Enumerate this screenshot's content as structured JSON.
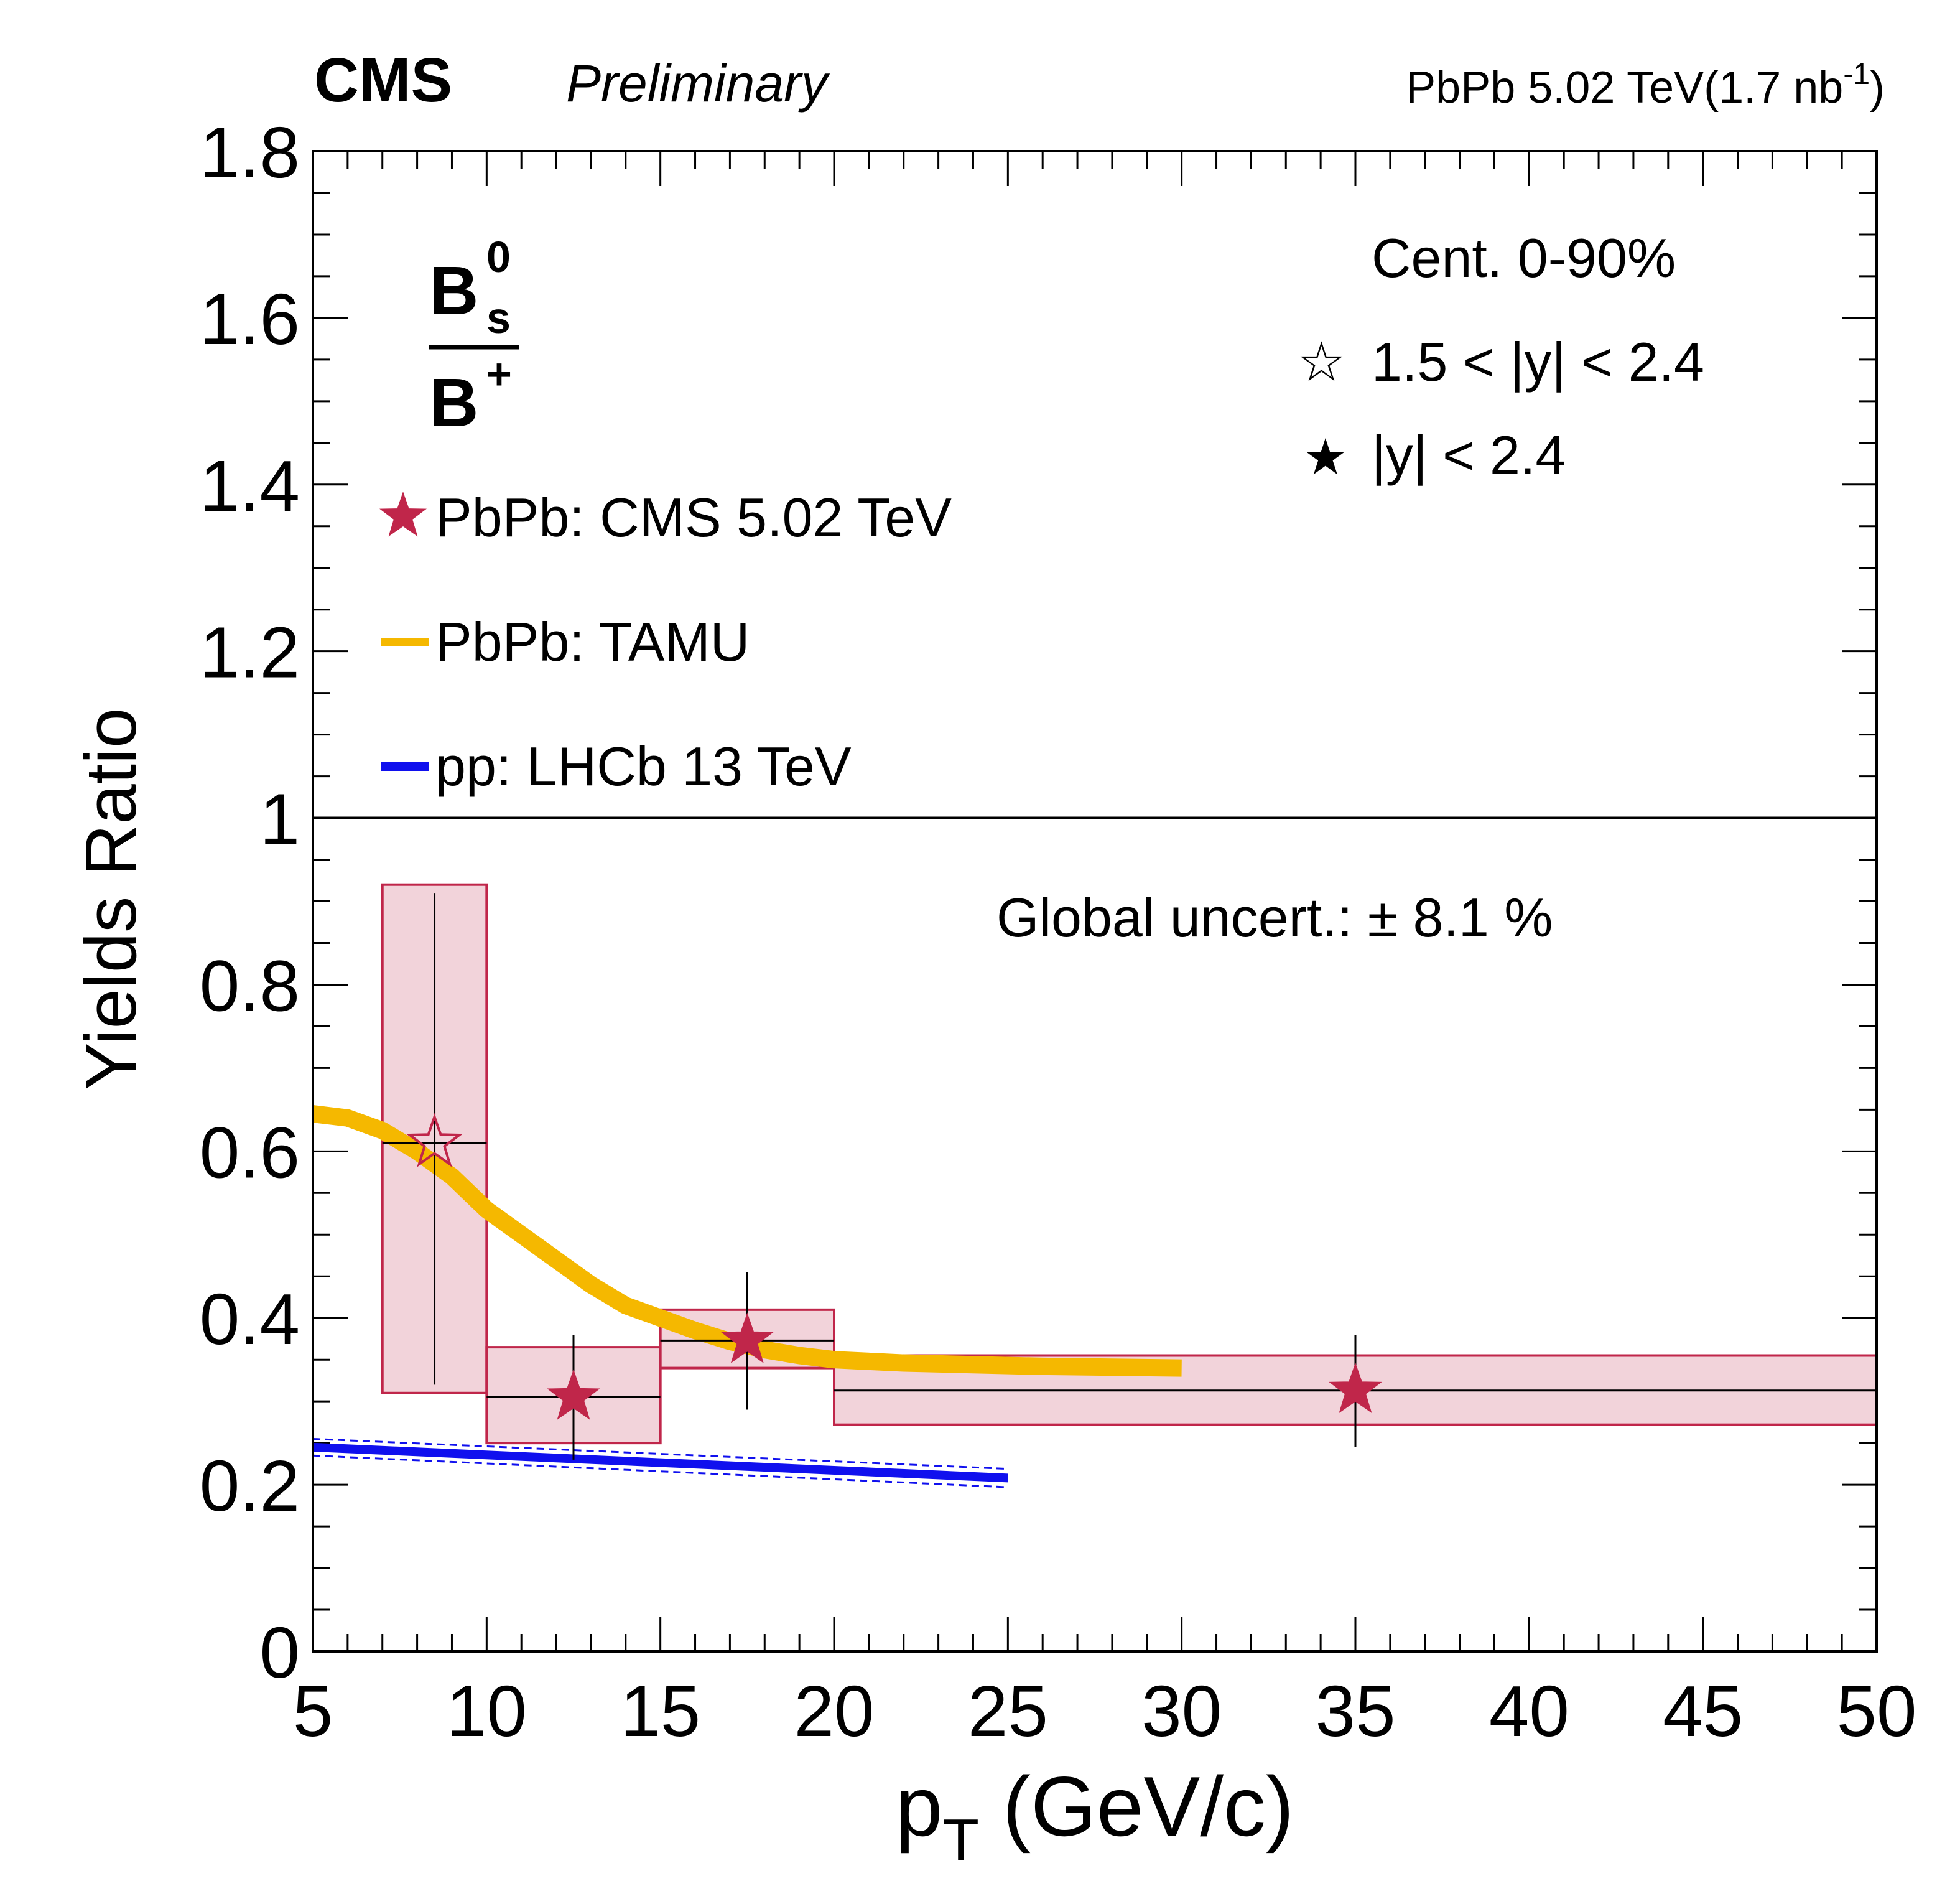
{
  "header": {
    "experiment": "CMS",
    "status": "Preliminary",
    "lumi_prefix": "PbPb 5.02 TeV(1.7 nb",
    "lumi_exp": "-1",
    "lumi_suffix": ")"
  },
  "ratio_label": {
    "num_main": "B",
    "num_sup": "0",
    "num_sub": "s",
    "den_main": "B",
    "den_sup": "+"
  },
  "info": {
    "centrality": "Cent. 0-90%",
    "open_star_symbol": "☆",
    "open_star_label": "1.5 < |y| < 2.4",
    "filled_star_symbol": "★",
    "filled_star_label": "|y| < 2.4",
    "global_uncert": "Global uncert.: ± 8.1 %"
  },
  "colors": {
    "cms": "#c0264a",
    "cms_box_fill": "#f2d3da",
    "tamu": "#f5b800",
    "lhcb": "#1010ee"
  },
  "chart_data": {
    "type": "scatter",
    "title": "",
    "xlabel_main": "p",
    "xlabel_sub": "T",
    "xlabel_rest": " (GeV/c)",
    "ylabel": "Yields Ratio",
    "xlim": [
      5,
      50
    ],
    "ylim": [
      0,
      1.8
    ],
    "xticks": [
      "5",
      "10",
      "15",
      "20",
      "25",
      "30",
      "35",
      "40",
      "45",
      "50"
    ],
    "yticks": [
      "0",
      "0.2",
      "0.4",
      "0.6",
      "0.8",
      "1",
      "1.2",
      "1.4",
      "1.6",
      "1.8"
    ],
    "reference_line": 1.0,
    "legend": [
      "PbPb: CMS 5.02 TeV",
      "PbPb: TAMU",
      "pp: LHCb 13 TeV"
    ],
    "series": [
      {
        "name": "PbPb: CMS 5.02 TeV",
        "points": [
          {
            "x": 8.5,
            "xlow": 7,
            "xhigh": 10,
            "y": 0.61,
            "stat_low": 0.32,
            "stat_high": 0.91,
            "syst_low": 0.31,
            "syst_high": 0.92,
            "marker": "open-star"
          },
          {
            "x": 12.5,
            "xlow": 10,
            "xhigh": 15,
            "y": 0.305,
            "stat_low": 0.23,
            "stat_high": 0.38,
            "syst_low": 0.25,
            "syst_high": 0.365,
            "marker": "filled-star"
          },
          {
            "x": 17.5,
            "xlow": 15,
            "xhigh": 20,
            "y": 0.373,
            "stat_low": 0.29,
            "stat_high": 0.455,
            "syst_low": 0.34,
            "syst_high": 0.41,
            "marker": "filled-star"
          },
          {
            "x": 35,
            "xlow": 20,
            "xhigh": 50,
            "y": 0.313,
            "stat_low": 0.245,
            "stat_high": 0.38,
            "syst_low": 0.272,
            "syst_high": 0.355,
            "marker": "filled-star"
          }
        ]
      },
      {
        "name": "PbPb: TAMU",
        "x": [
          5,
          6,
          7,
          8,
          9,
          10,
          11,
          12,
          13,
          14,
          15,
          16,
          17,
          18,
          19,
          20,
          22,
          24,
          26,
          28,
          30
        ],
        "y": [
          0.645,
          0.64,
          0.625,
          0.6,
          0.57,
          0.53,
          0.5,
          0.47,
          0.44,
          0.415,
          0.4,
          0.385,
          0.372,
          0.362,
          0.355,
          0.35,
          0.346,
          0.344,
          0.342,
          0.341,
          0.34
        ]
      },
      {
        "name": "pp: LHCb 13 TeV",
        "x": [
          5,
          25
        ],
        "y": [
          0.245,
          0.208
        ],
        "band_low": [
          0.235,
          0.197
        ],
        "band_high": [
          0.255,
          0.219
        ]
      }
    ]
  }
}
